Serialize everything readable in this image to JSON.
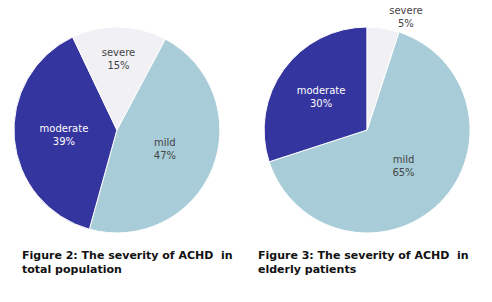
{
  "chart_data": [
    {
      "type": "pie",
      "title": "Figure 2: The severity of ACHD  in\ntotal population",
      "categories": [
        "mild",
        "moderate",
        "severe"
      ],
      "values": [
        47,
        39,
        15
      ],
      "value_labels": [
        "47%",
        "39%",
        "15%"
      ],
      "colors": [
        "#a8cdd8",
        "#3535a0",
        "#f0f0f5"
      ],
      "data_labels": true
    },
    {
      "type": "pie",
      "title": "Figure 3: The severity of ACHD  in\nelderly patients",
      "categories": [
        "mild",
        "moderate",
        "severe"
      ],
      "values": [
        65,
        30,
        5
      ],
      "value_labels": [
        "65%",
        "30%",
        "5%"
      ],
      "colors": [
        "#a8cdd8",
        "#3535a0",
        "#f0f0f5"
      ],
      "data_labels": true
    }
  ]
}
